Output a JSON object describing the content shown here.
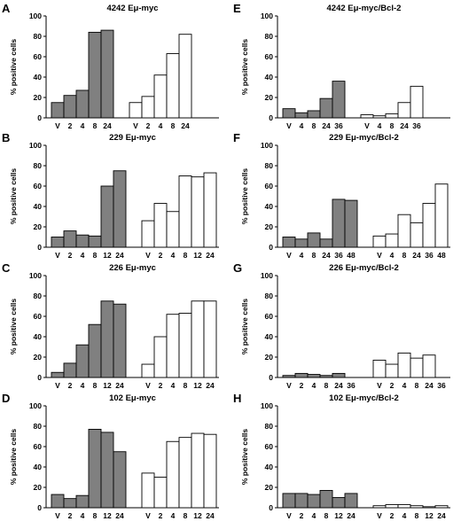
{
  "chart_data": [
    {
      "type": "bar",
      "letter": "A",
      "title": "4242 Eμ-myc",
      "ylabel": "% positive cells",
      "ylim": [
        0,
        100
      ],
      "yticks": [
        0,
        20,
        40,
        60,
        80,
        100
      ],
      "series": [
        {
          "fill": "#808080",
          "categories": [
            "V",
            "2",
            "4",
            "8",
            "24"
          ],
          "values": [
            15,
            22,
            27,
            84,
            86
          ]
        },
        {
          "fill": "#ffffff",
          "categories": [
            "V",
            "2",
            "4",
            "8",
            "24"
          ],
          "values": [
            15,
            21,
            42,
            63,
            82
          ]
        }
      ]
    },
    {
      "type": "bar",
      "letter": "B",
      "title": "229 Eμ-myc",
      "ylabel": "% positive cells",
      "ylim": [
        0,
        100
      ],
      "yticks": [
        0,
        20,
        40,
        60,
        80,
        100
      ],
      "series": [
        {
          "fill": "#808080",
          "categories": [
            "V",
            "2",
            "4",
            "8",
            "12",
            "24"
          ],
          "values": [
            10,
            16,
            12,
            11,
            60,
            75
          ]
        },
        {
          "fill": "#ffffff",
          "categories": [
            "V",
            "2",
            "4",
            "8",
            "12",
            "24"
          ],
          "values": [
            26,
            43,
            35,
            70,
            69,
            73
          ]
        }
      ]
    },
    {
      "type": "bar",
      "letter": "C",
      "title": "226 Eμ-myc",
      "ylabel": "% positive cells",
      "ylim": [
        0,
        100
      ],
      "yticks": [
        0,
        20,
        40,
        60,
        80,
        100
      ],
      "series": [
        {
          "fill": "#808080",
          "categories": [
            "V",
            "2",
            "4",
            "8",
            "12",
            "24"
          ],
          "values": [
            5,
            14,
            32,
            52,
            75,
            72
          ]
        },
        {
          "fill": "#ffffff",
          "categories": [
            "V",
            "2",
            "4",
            "8",
            "12",
            "24"
          ],
          "values": [
            13,
            40,
            62,
            63,
            75,
            75
          ]
        }
      ]
    },
    {
      "type": "bar",
      "letter": "D",
      "title": "102 Eμ-myc",
      "ylabel": "% positive cells",
      "ylim": [
        0,
        100
      ],
      "yticks": [
        0,
        20,
        40,
        60,
        80,
        100
      ],
      "series": [
        {
          "fill": "#808080",
          "categories": [
            "V",
            "2",
            "4",
            "8",
            "12",
            "24"
          ],
          "values": [
            13,
            9,
            12,
            77,
            74,
            55
          ]
        },
        {
          "fill": "#ffffff",
          "categories": [
            "V",
            "2",
            "4",
            "8",
            "12",
            "24"
          ],
          "values": [
            34,
            30,
            65,
            69,
            73,
            72
          ]
        }
      ]
    },
    {
      "type": "bar",
      "letter": "E",
      "title": "4242 Eμ-myc/Bcl-2",
      "ylabel": "% positive cells",
      "ylim": [
        0,
        100
      ],
      "yticks": [
        0,
        20,
        40,
        60,
        80,
        100
      ],
      "series": [
        {
          "fill": "#808080",
          "categories": [
            "V",
            "4",
            "8",
            "24",
            "36"
          ],
          "values": [
            9,
            5,
            7,
            19,
            36
          ]
        },
        {
          "fill": "#ffffff",
          "categories": [
            "V",
            "4",
            "8",
            "24",
            "36"
          ],
          "values": [
            3,
            2,
            4,
            15,
            31
          ]
        }
      ]
    },
    {
      "type": "bar",
      "letter": "F",
      "title": "229 Eμ-myc/Bcl-2",
      "ylabel": "% positive cells",
      "ylim": [
        0,
        100
      ],
      "yticks": [
        0,
        20,
        40,
        60,
        80,
        100
      ],
      "series": [
        {
          "fill": "#808080",
          "categories": [
            "V",
            "4",
            "8",
            "24",
            "36",
            "48"
          ],
          "values": [
            10,
            8,
            14,
            8,
            47,
            46
          ]
        },
        {
          "fill": "#ffffff",
          "categories": [
            "V",
            "4",
            "8",
            "24",
            "36",
            "48"
          ],
          "values": [
            11,
            13,
            32,
            24,
            43,
            62
          ]
        }
      ]
    },
    {
      "type": "bar",
      "letter": "G",
      "title": "226 Eμ-myc/Bcl-2",
      "ylabel": "% positive cells",
      "ylim": [
        0,
        100
      ],
      "yticks": [
        0,
        20,
        40,
        60,
        80,
        100
      ],
      "series": [
        {
          "fill": "#808080",
          "categories": [
            "V",
            "2",
            "4",
            "8",
            "24",
            "36"
          ],
          "values": [
            2,
            4,
            3,
            2,
            4,
            0
          ]
        },
        {
          "fill": "#ffffff",
          "categories": [
            "V",
            "2",
            "4",
            "8",
            "24",
            "36"
          ],
          "values": [
            17,
            13,
            24,
            19,
            22,
            0
          ]
        }
      ]
    },
    {
      "type": "bar",
      "letter": "H",
      "title": "102 Eμ-myc/Bcl-2",
      "ylabel": "% positive cells",
      "ylim": [
        0,
        100
      ],
      "yticks": [
        0,
        20,
        40,
        60,
        80,
        100
      ],
      "series": [
        {
          "fill": "#808080",
          "categories": [
            "V",
            "2",
            "4",
            "8",
            "12",
            "24"
          ],
          "values": [
            14,
            14,
            13,
            17,
            10,
            14
          ]
        },
        {
          "fill": "#ffffff",
          "categories": [
            "V",
            "2",
            "4",
            "8",
            "12",
            "24"
          ],
          "values": [
            2,
            3,
            3,
            2,
            1,
            2
          ]
        }
      ]
    }
  ]
}
